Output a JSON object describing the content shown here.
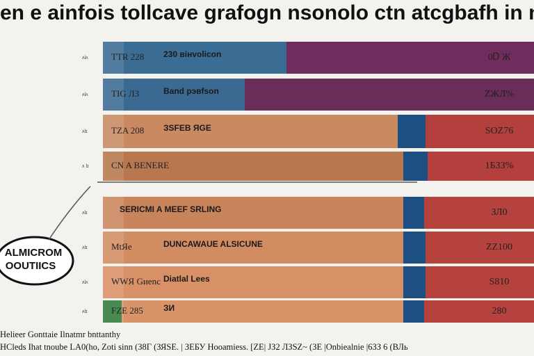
{
  "title": "en e ainfois tollcave grafogn nsonolo ctn atcgbafh in nicor s",
  "rows": [
    {
      "tick": "ʌlʌ",
      "label": "TTR 228",
      "text": "230 вінvolicon",
      "right": "0Ꭰ Ж"
    },
    {
      "tick": "ʌlʌ",
      "label": "TIG ЛЗ",
      "text": "Band рэвfson",
      "right": "ZЖЛ%"
    },
    {
      "tick": "ʌlɪ",
      "label": "TZA 208",
      "text": "ЗSFEB ЯGE",
      "right": "SOZ76"
    },
    {
      "tick": "ʌ lɪ",
      "label": "CN A BENERE",
      "text": "",
      "right": "1БЗЗ%"
    },
    {
      "tick": "ʌlɪ",
      "label": "",
      "text": "SERICMI A MEEF SRLING",
      "right": "ЗЛ0"
    },
    {
      "tick": "ʌlɪ",
      "label": "MtЯe",
      "text": "DUNCAWAUE ALSICUNE",
      "right": "ZZ100"
    },
    {
      "tick": "ʌlʌ",
      "label": "WWЯ Gиenc",
      "text": "Diatlal Lees",
      "right": "S810"
    },
    {
      "tick": "ʌlɪ",
      "label": "FZE 285",
      "text": "ЗИ",
      "right": "280"
    }
  ],
  "callout": [
    "ALMICROM",
    "OOUTIICS"
  ],
  "footer": [
    "Helieer Gonttaie Ilnatmr bnttanthy",
    "HCleds Ihat tnoube LA0(ho, Zoti sinn (З8Г (ЗЯSE. | ЗЕБУ Hooamiess. [ZE| ЈЗ2 ЛЗSZ~ (ЗЕ |Onbiealnie |6ЗЗ 6 (ВЛь"
  ]
}
